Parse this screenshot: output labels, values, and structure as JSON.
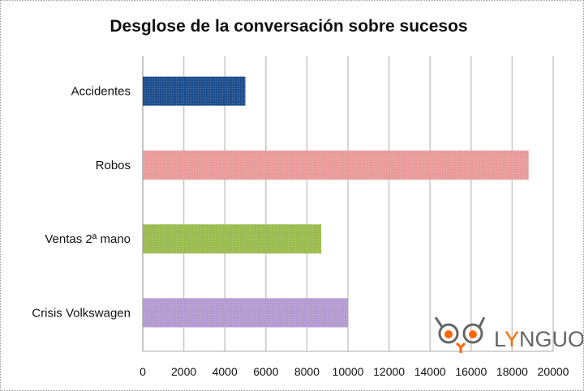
{
  "chart_data": {
    "type": "bar",
    "orientation": "horizontal",
    "title": "Desglose de la conversación sobre sucesos",
    "categories": [
      "Accidentes",
      "Robos",
      "Ventas 2ª mano",
      "Crisis Volkswagen"
    ],
    "values": [
      5000,
      18800,
      8700,
      10000
    ],
    "colors": [
      "#1f4e8c",
      "#e89a9a",
      "#9bbb4f",
      "#b39ad0"
    ],
    "xlim": [
      0,
      20000
    ],
    "xticks": [
      0,
      2000,
      4000,
      6000,
      8000,
      10000,
      12000,
      14000,
      16000,
      18000,
      20000
    ],
    "grid": true,
    "legend": "none",
    "xlabel": "",
    "ylabel": ""
  },
  "logo": {
    "text": "LYNGUO",
    "accent": "#ff6600",
    "gray": "#666666"
  }
}
